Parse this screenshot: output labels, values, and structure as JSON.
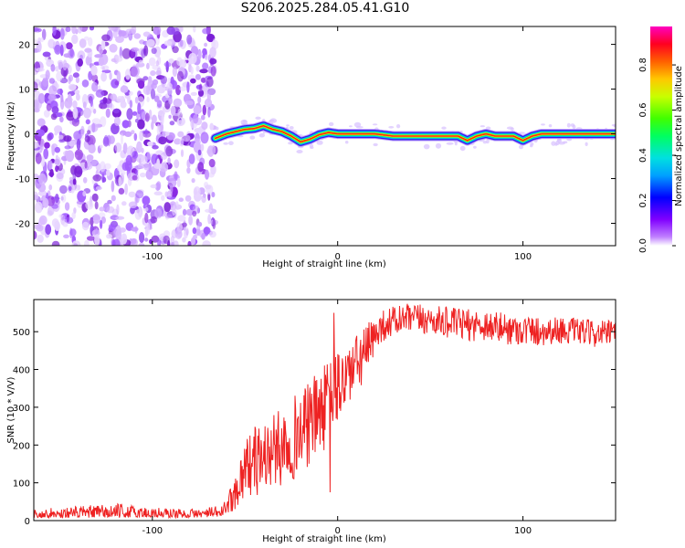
{
  "page_title": "S206.2025.284.05.41.G10",
  "chart_data": [
    {
      "type": "heatmap",
      "name": "spectrogram",
      "title": "S206.2025.284.05.41.G10",
      "xlabel": "Height of straight line (km)",
      "ylabel": "Frequency (Hz)",
      "xlim": [
        -164,
        150
      ],
      "ylim": [
        -25,
        24
      ],
      "xticks": [
        -100,
        0,
        100
      ],
      "yticks": [
        20,
        10,
        0,
        -10,
        -20
      ],
      "noise_region_x": [
        -164,
        -66
      ],
      "signal_track": {
        "x": [
          -66,
          -60,
          -55,
          -50,
          -45,
          -40,
          -35,
          -30,
          -25,
          -20,
          -15,
          -10,
          -5,
          0,
          10,
          20,
          30,
          40,
          50,
          60,
          65,
          70,
          75,
          80,
          85,
          90,
          95,
          100,
          105,
          110,
          120,
          130,
          140,
          150
        ],
        "y": [
          -1.0,
          0.0,
          0.5,
          1.0,
          1.2,
          1.8,
          1.0,
          0.5,
          -0.5,
          -1.8,
          -1.2,
          -0.2,
          0.3,
          0.0,
          0.0,
          0.0,
          -0.5,
          -0.5,
          -0.5,
          -0.5,
          -0.5,
          -1.5,
          -0.5,
          0.0,
          -0.5,
          -0.5,
          -0.5,
          -1.5,
          -0.5,
          0.0,
          0.0,
          0.0,
          0.0,
          0.0
        ]
      },
      "colorbar": {
        "label": "Normalized spectral amplitude",
        "ticks": [
          "0.0",
          "0.2",
          "0.4",
          "0.6",
          "0.8"
        ],
        "tick_values": [
          0.0,
          0.2,
          0.4,
          0.6,
          0.8
        ],
        "range": [
          0.0,
          0.97
        ],
        "colors": [
          "#ffffff",
          "#8000ff",
          "#0000ff",
          "#00c8ff",
          "#00ff80",
          "#00ff00",
          "#c8ff00",
          "#ffff00",
          "#ff8000",
          "#ff0000",
          "#ff00ff"
        ]
      }
    },
    {
      "type": "line",
      "name": "snr",
      "xlabel": "Height of straight line (km)",
      "ylabel": "SNR (10 * V/V)",
      "xlim": [
        -164,
        150
      ],
      "ylim": [
        0,
        585
      ],
      "xticks": [
        -100,
        0,
        100
      ],
      "yticks": [
        0,
        100,
        200,
        300,
        400,
        500
      ],
      "color": "#ee2222",
      "envelope": {
        "x": [
          -164,
          -120,
          -80,
          -62,
          -55,
          -50,
          -45,
          -40,
          -35,
          -30,
          -25,
          -20,
          -15,
          -10,
          -5,
          0,
          5,
          10,
          15,
          20,
          25,
          30,
          40,
          50,
          60,
          70,
          80,
          90,
          100,
          110,
          120,
          130,
          140,
          150
        ],
        "low": [
          8,
          8,
          8,
          10,
          30,
          60,
          60,
          70,
          80,
          90,
          100,
          120,
          140,
          160,
          200,
          240,
          290,
          330,
          360,
          410,
          430,
          440,
          450,
          450,
          440,
          430,
          430,
          420,
          420,
          420,
          430,
          430,
          420,
          430
        ],
        "high": [
          30,
          45,
          30,
          40,
          120,
          220,
          250,
          260,
          280,
          300,
          330,
          340,
          370,
          400,
          420,
          450,
          470,
          490,
          520,
          540,
          560,
          570,
          575,
          570,
          565,
          560,
          560,
          550,
          545,
          540,
          540,
          535,
          530,
          530
        ]
      },
      "spikes": [
        {
          "x": -2,
          "y": 550
        },
        {
          "x": -4,
          "y": 75
        }
      ]
    }
  ]
}
